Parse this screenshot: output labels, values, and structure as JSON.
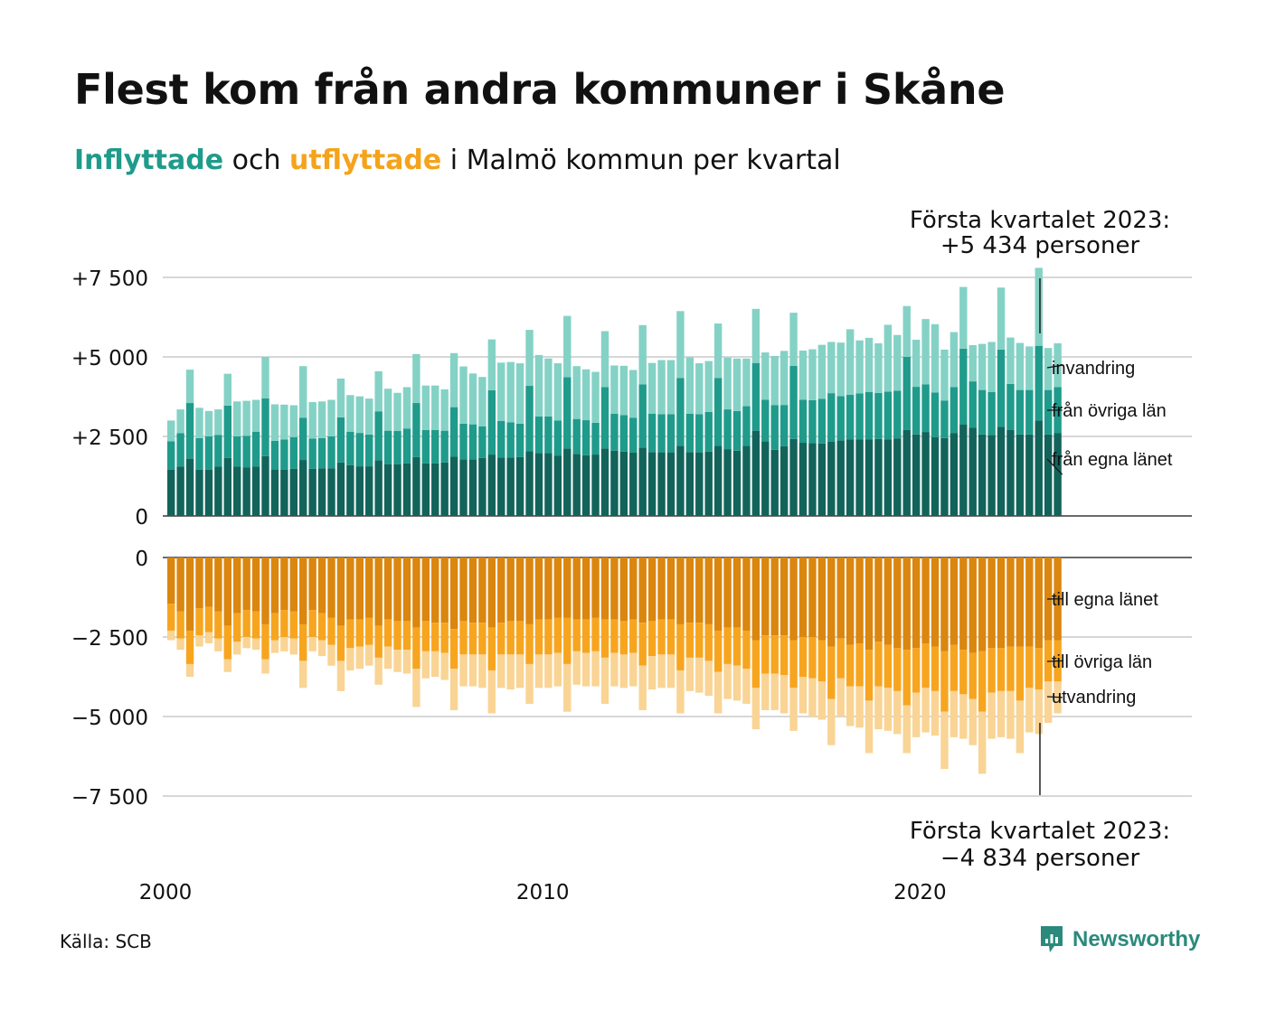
{
  "title": "Flest kom från andra kommuner i Skåne",
  "subtitle": {
    "part1": "Inflyttade",
    "part2": " och ",
    "part3": "utflyttade",
    "part4": " i Malmö kommun per kvartal"
  },
  "source": "Källa: SCB",
  "brand": "Newsworthy",
  "colors": {
    "in_egna": "#12645b",
    "in_ovriga": "#1f9b8b",
    "in_invandring": "#84d2c5",
    "out_egna": "#da860f",
    "out_ovriga": "#f7a51f",
    "out_utvandring": "#f9d494",
    "grid": "#d7d7d7",
    "axis": "#111111"
  },
  "callouts": {
    "top_line1": "Första kvartalet 2023:",
    "top_line2": "+5 434 personer",
    "bottom_line1": "Första kvartalet 2023:",
    "bottom_line2": "−4 834 personer"
  },
  "chart_data": {
    "type": "bar",
    "stacked": true,
    "start_year": 2000,
    "periods_per_year": 4,
    "x_ticks": [
      "2000",
      "2010",
      "2020"
    ],
    "panels": [
      {
        "name": "inflyttade",
        "y_ticks": [
          {
            "value": 7500,
            "label": "+7 500"
          },
          {
            "value": 5000,
            "label": "+5 000"
          },
          {
            "value": 2500,
            "label": "+2 500"
          },
          {
            "value": 0,
            "label": "0"
          }
        ],
        "ylim": [
          0,
          7500
        ],
        "series": [
          {
            "name": "från egna länet",
            "color_key": "in_egna",
            "values": [
              1450,
              1550,
              1800,
              1450,
              1450,
              1550,
              1820,
              1550,
              1520,
              1550,
              1880,
              1460,
              1450,
              1480,
              1760,
              1480,
              1500,
              1500,
              1680,
              1600,
              1560,
              1560,
              1750,
              1630,
              1620,
              1650,
              1850,
              1650,
              1650,
              1680,
              1860,
              1780,
              1780,
              1820,
              1930,
              1840,
              1840,
              1850,
              2030,
              1980,
              1980,
              1900,
              2120,
              1950,
              1910,
              1930,
              2120,
              2050,
              2020,
              1990,
              2150,
              2010,
              2000,
              2000,
              2200,
              2010,
              2000,
              2020,
              2200,
              2100,
              2050,
              2200,
              2680,
              2350,
              2080,
              2190,
              2420,
              2300,
              2290,
              2280,
              2330,
              2370,
              2410,
              2400,
              2400,
              2420,
              2410,
              2440,
              2700,
              2560,
              2640,
              2480,
              2450,
              2600,
              2880,
              2780,
              2560,
              2550,
              2800,
              2700,
              2560,
              2560,
              3000,
              2560,
              2600
            ]
          },
          {
            "name": "från övriga län",
            "color_key": "in_ovriga",
            "values": [
              900,
              1050,
              1750,
              1000,
              1050,
              1000,
              1650,
              950,
              1000,
              1100,
              1820,
              900,
              950,
              1000,
              1330,
              950,
              950,
              1000,
              1420,
              1050,
              1050,
              1000,
              1540,
              1050,
              1050,
              1100,
              1700,
              1050,
              1050,
              1000,
              1560,
              1120,
              1100,
              1000,
              2020,
              1150,
              1100,
              1050,
              2060,
              1150,
              1150,
              1100,
              2240,
              1100,
              1100,
              1000,
              1930,
              1160,
              1150,
              1100,
              1990,
              1200,
              1200,
              1200,
              2140,
              1200,
              1200,
              1250,
              2140,
              1250,
              1250,
              1250,
              2130,
              1300,
              1400,
              1300,
              2300,
              1350,
              1350,
              1400,
              1530,
              1400,
              1400,
              1450,
              1500,
              1450,
              1500,
              1500,
              2300,
              1500,
              1500,
              1400,
              1180,
              1450,
              2380,
              1450,
              1400,
              1350,
              2430,
              1450,
              1400,
              1400,
              2350,
              1400,
              1450
            ]
          },
          {
            "name": "invandring",
            "color_key": "in_invandring",
            "values": [
              650,
              750,
              1050,
              950,
              800,
              800,
              1000,
              1100,
              1100,
              1000,
              1300,
              1150,
              1100,
              1000,
              1620,
              1150,
              1150,
              1150,
              1220,
              1150,
              1150,
              1130,
              1260,
              1320,
              1200,
              1300,
              1540,
              1400,
              1400,
              1300,
              1700,
              1800,
              1600,
              1550,
              1600,
              1830,
              1900,
              1900,
              1760,
              1930,
              1820,
              1800,
              1930,
              1660,
              1600,
              1600,
              1760,
              1520,
              1550,
              1500,
              1860,
              1600,
              1700,
              1700,
              2100,
              1780,
              1600,
              1600,
              1710,
              1630,
              1650,
              1500,
              1700,
              1490,
              1550,
              1700,
              1670,
              1550,
              1600,
              1700,
              1610,
              1680,
              2060,
              1670,
              1700,
              1560,
              2100,
              1750,
              1600,
              1480,
              2050,
              2150,
              1600,
              1730,
              1940,
              1140,
              1450,
              1570,
              1950,
              1460,
              1480,
              1370,
              2450,
              1320,
              1380
            ]
          }
        ]
      },
      {
        "name": "utflyttade",
        "y_ticks": [
          {
            "value": 0,
            "label": "0"
          },
          {
            "value": -2500,
            "label": "−2 500"
          },
          {
            "value": -5000,
            "label": "−5 000"
          },
          {
            "value": -7500,
            "label": "−7 500"
          }
        ],
        "ylim": [
          -7500,
          0
        ],
        "series": [
          {
            "name": "till egna länet",
            "color_key": "out_egna",
            "values": [
              -1450,
              -1700,
              -2300,
              -1600,
              -1550,
              -1700,
              -2150,
              -1750,
              -1650,
              -1700,
              -2100,
              -1750,
              -1650,
              -1700,
              -2100,
              -1650,
              -1750,
              -1900,
              -2150,
              -1950,
              -1950,
              -1900,
              -2150,
              -1950,
              -2000,
              -2000,
              -2200,
              -2000,
              -2050,
              -2050,
              -2250,
              -2000,
              -2050,
              -2050,
              -2200,
              -2050,
              -2000,
              -2000,
              -2100,
              -1950,
              -1950,
              -1900,
              -1900,
              -1950,
              -1950,
              -1900,
              -1950,
              -1950,
              -2000,
              -1950,
              -2050,
              -2000,
              -1950,
              -1950,
              -2100,
              -2050,
              -2050,
              -2100,
              -2300,
              -2200,
              -2200,
              -2300,
              -2600,
              -2450,
              -2450,
              -2450,
              -2600,
              -2500,
              -2500,
              -2600,
              -2800,
              -2550,
              -2750,
              -2700,
              -2900,
              -2650,
              -2750,
              -2850,
              -2900,
              -2850,
              -2700,
              -2800,
              -2950,
              -2750,
              -2900,
              -3000,
              -2950,
              -2850,
              -2850,
              -2800,
              -2800,
              -2800,
              -2850,
              -2600,
              -2600
            ]
          },
          {
            "name": "till övriga län",
            "color_key": "out_ovriga",
            "values": [
              -850,
              -850,
              -1050,
              -850,
              -800,
              -850,
              -1050,
              -900,
              -850,
              -850,
              -1100,
              -850,
              -850,
              -850,
              -1150,
              -850,
              -850,
              -850,
              -1100,
              -900,
              -850,
              -850,
              -1000,
              -850,
              -900,
              -900,
              -1300,
              -950,
              -900,
              -950,
              -1250,
              -1050,
              -1000,
              -1000,
              -1350,
              -1000,
              -1050,
              -1050,
              -1250,
              -1100,
              -1100,
              -1100,
              -1450,
              -1000,
              -1050,
              -1050,
              -1200,
              -1050,
              -1050,
              -1050,
              -1350,
              -1100,
              -1100,
              -1100,
              -1450,
              -1100,
              -1100,
              -1150,
              -1300,
              -1150,
              -1200,
              -1200,
              -1500,
              -1200,
              -1200,
              -1250,
              -1500,
              -1250,
              -1300,
              -1300,
              -1650,
              -1250,
              -1300,
              -1350,
              -1600,
              -1400,
              -1350,
              -1350,
              -1750,
              -1400,
              -1400,
              -1400,
              -1900,
              -1450,
              -1400,
              -1450,
              -1900,
              -1400,
              -1350,
              -1400,
              -1700,
              -1300,
              -1300,
              -1300,
              -1300
            ]
          },
          {
            "name": "utvandring",
            "color_key": "out_utvandring",
            "values": [
              -300,
              -350,
              -400,
              -350,
              -350,
              -400,
              -400,
              -400,
              -350,
              -350,
              -450,
              -400,
              -450,
              -500,
              -850,
              -450,
              -500,
              -650,
              -950,
              -700,
              -700,
              -650,
              -850,
              -700,
              -700,
              -750,
              -1200,
              -850,
              -800,
              -850,
              -1300,
              -1000,
              -1000,
              -1050,
              -1350,
              -1050,
              -1100,
              -1050,
              -1250,
              -1050,
              -1050,
              -1050,
              -1500,
              -1050,
              -1050,
              -1100,
              -1450,
              -1050,
              -1050,
              -1050,
              -1400,
              -1050,
              -1050,
              -1050,
              -1350,
              -1050,
              -1100,
              -1100,
              -1300,
              -1100,
              -1100,
              -1100,
              -1300,
              -1150,
              -1150,
              -1200,
              -1350,
              -1150,
              -1200,
              -1200,
              -1450,
              -1200,
              -1250,
              -1300,
              -1650,
              -1350,
              -1350,
              -1350,
              -1500,
              -1400,
              -1400,
              -1400,
              -1800,
              -1450,
              -1400,
              -1450,
              -1950,
              -1450,
              -1450,
              -1500,
              -1650,
              -1400,
              -1400,
              -1300,
              -1000
            ]
          }
        ],
        "labels_order": [
          "till egna länet",
          "till övriga län",
          "utvandring"
        ]
      }
    ]
  }
}
